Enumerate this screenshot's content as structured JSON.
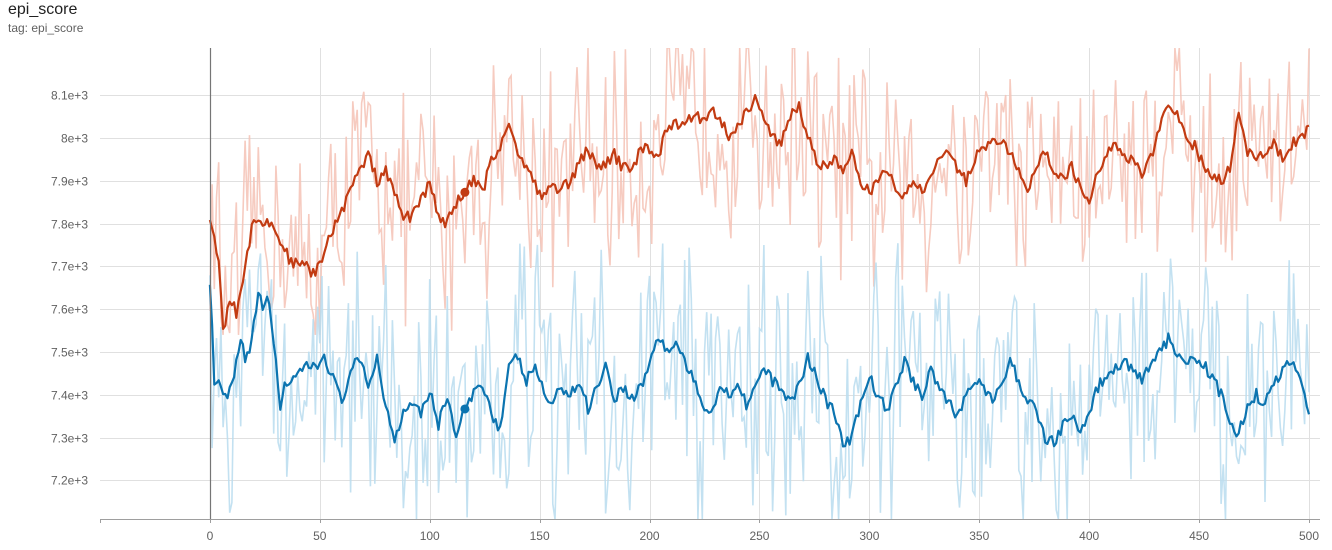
{
  "header": {
    "title": "epi_score",
    "tag": "tag: epi_score"
  },
  "colors": {
    "orange_raw": "#f4c2b5",
    "orange_smooth": "#c23b12",
    "blue_raw": "#b8dcee",
    "blue_smooth": "#0c74b0",
    "grid": "#e0e0e0"
  },
  "chart_data": {
    "type": "line",
    "title": "epi_score",
    "xlabel": "",
    "ylabel": "",
    "xlim": [
      -50,
      505
    ],
    "ylim": [
      7110,
      8210
    ],
    "xticks": [
      0,
      50,
      100,
      150,
      200,
      250,
      300,
      350,
      400,
      450,
      500
    ],
    "yticks": [
      7200,
      7300,
      7400,
      7500,
      7600,
      7700,
      7800,
      7900,
      8000,
      8100
    ],
    "ytick_labels": [
      "7.2e+3",
      "7.3e+3",
      "7.4e+3",
      "7.5e+3",
      "7.6e+3",
      "7.7e+3",
      "7.8e+3",
      "7.9e+3",
      "8e+3",
      "8.1e+3"
    ],
    "grid": true,
    "hover_markers": [
      {
        "series": "orange",
        "x": 116,
        "y": 7873
      },
      {
        "series": "blue",
        "x": 116,
        "y": 7367
      }
    ],
    "series": [
      {
        "color": "#c23b12",
        "raw_color": "#f4c2b5",
        "smoothed_keypoints": [
          [
            0,
            7822
          ],
          [
            2,
            7760
          ],
          [
            4,
            7720
          ],
          [
            6,
            7540
          ],
          [
            8,
            7600
          ],
          [
            10,
            7620
          ],
          [
            12,
            7590
          ],
          [
            16,
            7700
          ],
          [
            20,
            7820
          ],
          [
            24,
            7800
          ],
          [
            28,
            7800
          ],
          [
            32,
            7760
          ],
          [
            36,
            7720
          ],
          [
            40,
            7700
          ],
          [
            44,
            7700
          ],
          [
            48,
            7680
          ],
          [
            52,
            7730
          ],
          [
            56,
            7790
          ],
          [
            60,
            7830
          ],
          [
            64,
            7880
          ],
          [
            68,
            7920
          ],
          [
            72,
            7960
          ],
          [
            76,
            7900
          ],
          [
            80,
            7920
          ],
          [
            84,
            7870
          ],
          [
            88,
            7810
          ],
          [
            92,
            7820
          ],
          [
            96,
            7860
          ],
          [
            100,
            7890
          ],
          [
            104,
            7820
          ],
          [
            108,
            7800
          ],
          [
            112,
            7850
          ],
          [
            116,
            7873
          ],
          [
            120,
            7900
          ],
          [
            124,
            7870
          ],
          [
            128,
            7950
          ],
          [
            132,
            7980
          ],
          [
            136,
            8040
          ],
          [
            140,
            7960
          ],
          [
            144,
            7940
          ],
          [
            148,
            7890
          ],
          [
            152,
            7860
          ],
          [
            156,
            7890
          ],
          [
            160,
            7880
          ],
          [
            164,
            7900
          ],
          [
            168,
            7940
          ],
          [
            172,
            7980
          ],
          [
            176,
            7920
          ],
          [
            180,
            7940
          ],
          [
            184,
            7960
          ],
          [
            188,
            7930
          ],
          [
            192,
            7920
          ],
          [
            196,
            7980
          ],
          [
            200,
            7970
          ],
          [
            204,
            7960
          ],
          [
            208,
            8020
          ],
          [
            212,
            8040
          ],
          [
            216,
            8020
          ],
          [
            220,
            8060
          ],
          [
            224,
            8040
          ],
          [
            228,
            8070
          ],
          [
            232,
            8050
          ],
          [
            236,
            8000
          ],
          [
            240,
            8030
          ],
          [
            244,
            8060
          ],
          [
            248,
            8090
          ],
          [
            252,
            8040
          ],
          [
            256,
            8000
          ],
          [
            260,
            7990
          ],
          [
            264,
            8050
          ],
          [
            268,
            8070
          ],
          [
            272,
            8000
          ],
          [
            276,
            7950
          ],
          [
            280,
            7930
          ],
          [
            284,
            7950
          ],
          [
            288,
            7920
          ],
          [
            292,
            7960
          ],
          [
            296,
            7900
          ],
          [
            300,
            7870
          ],
          [
            304,
            7900
          ],
          [
            308,
            7930
          ],
          [
            312,
            7880
          ],
          [
            316,
            7860
          ],
          [
            320,
            7900
          ],
          [
            324,
            7880
          ],
          [
            328,
            7910
          ],
          [
            332,
            7950
          ],
          [
            336,
            7980
          ],
          [
            340,
            7930
          ],
          [
            344,
            7900
          ],
          [
            348,
            7950
          ],
          [
            352,
            7980
          ],
          [
            356,
            8000
          ],
          [
            360,
            7990
          ],
          [
            364,
            7960
          ],
          [
            368,
            7930
          ],
          [
            372,
            7880
          ],
          [
            376,
            7940
          ],
          [
            380,
            7960
          ],
          [
            384,
            7930
          ],
          [
            388,
            7900
          ],
          [
            392,
            7930
          ],
          [
            396,
            7880
          ],
          [
            400,
            7850
          ],
          [
            404,
            7930
          ],
          [
            408,
            7960
          ],
          [
            412,
            7990
          ],
          [
            416,
            7960
          ],
          [
            420,
            7950
          ],
          [
            424,
            7920
          ],
          [
            428,
            7950
          ],
          [
            432,
            8020
          ],
          [
            436,
            8080
          ],
          [
            440,
            8060
          ],
          [
            444,
            8000
          ],
          [
            448,
            7980
          ],
          [
            452,
            7940
          ],
          [
            456,
            7910
          ],
          [
            460,
            7900
          ],
          [
            464,
            7930
          ],
          [
            468,
            8060
          ],
          [
            472,
            7970
          ],
          [
            476,
            7950
          ],
          [
            480,
            7960
          ],
          [
            484,
            7990
          ],
          [
            488,
            7950
          ],
          [
            492,
            7980
          ],
          [
            496,
            8010
          ],
          [
            500,
            8015
          ]
        ],
        "raw_range": [
          7540,
          8210
        ]
      },
      {
        "color": "#0c74b0",
        "raw_color": "#b8dcee",
        "smoothed_keypoints": [
          [
            0,
            7670
          ],
          [
            2,
            7430
          ],
          [
            4,
            7420
          ],
          [
            6,
            7400
          ],
          [
            8,
            7390
          ],
          [
            10,
            7420
          ],
          [
            12,
            7470
          ],
          [
            14,
            7520
          ],
          [
            16,
            7490
          ],
          [
            18,
            7500
          ],
          [
            20,
            7560
          ],
          [
            22,
            7640
          ],
          [
            24,
            7600
          ],
          [
            26,
            7640
          ],
          [
            28,
            7560
          ],
          [
            30,
            7480
          ],
          [
            32,
            7370
          ],
          [
            34,
            7430
          ],
          [
            36,
            7420
          ],
          [
            40,
            7440
          ],
          [
            44,
            7470
          ],
          [
            48,
            7460
          ],
          [
            52,
            7490
          ],
          [
            56,
            7440
          ],
          [
            60,
            7380
          ],
          [
            64,
            7460
          ],
          [
            68,
            7480
          ],
          [
            72,
            7420
          ],
          [
            76,
            7490
          ],
          [
            80,
            7370
          ],
          [
            84,
            7300
          ],
          [
            88,
            7360
          ],
          [
            92,
            7390
          ],
          [
            96,
            7360
          ],
          [
            100,
            7410
          ],
          [
            104,
            7330
          ],
          [
            108,
            7400
          ],
          [
            112,
            7300
          ],
          [
            116,
            7367
          ],
          [
            120,
            7400
          ],
          [
            124,
            7430
          ],
          [
            128,
            7360
          ],
          [
            132,
            7320
          ],
          [
            136,
            7460
          ],
          [
            140,
            7490
          ],
          [
            144,
            7430
          ],
          [
            148,
            7470
          ],
          [
            152,
            7400
          ],
          [
            156,
            7380
          ],
          [
            160,
            7420
          ],
          [
            164,
            7400
          ],
          [
            168,
            7430
          ],
          [
            172,
            7370
          ],
          [
            176,
            7420
          ],
          [
            180,
            7470
          ],
          [
            184,
            7390
          ],
          [
            188,
            7420
          ],
          [
            192,
            7390
          ],
          [
            196,
            7420
          ],
          [
            200,
            7470
          ],
          [
            204,
            7540
          ],
          [
            208,
            7500
          ],
          [
            212,
            7520
          ],
          [
            216,
            7480
          ],
          [
            220,
            7430
          ],
          [
            224,
            7380
          ],
          [
            228,
            7360
          ],
          [
            232,
            7420
          ],
          [
            236,
            7400
          ],
          [
            240,
            7430
          ],
          [
            244,
            7380
          ],
          [
            248,
            7420
          ],
          [
            252,
            7460
          ],
          [
            256,
            7430
          ],
          [
            260,
            7420
          ],
          [
            264,
            7380
          ],
          [
            268,
            7420
          ],
          [
            272,
            7490
          ],
          [
            276,
            7440
          ],
          [
            280,
            7390
          ],
          [
            284,
            7360
          ],
          [
            288,
            7280
          ],
          [
            292,
            7300
          ],
          [
            296,
            7380
          ],
          [
            300,
            7440
          ],
          [
            304,
            7400
          ],
          [
            308,
            7360
          ],
          [
            312,
            7420
          ],
          [
            316,
            7480
          ],
          [
            320,
            7430
          ],
          [
            324,
            7400
          ],
          [
            328,
            7460
          ],
          [
            332,
            7420
          ],
          [
            336,
            7380
          ],
          [
            340,
            7350
          ],
          [
            344,
            7400
          ],
          [
            348,
            7440
          ],
          [
            352,
            7420
          ],
          [
            356,
            7380
          ],
          [
            360,
            7420
          ],
          [
            364,
            7480
          ],
          [
            368,
            7430
          ],
          [
            372,
            7390
          ],
          [
            376,
            7360
          ],
          [
            380,
            7300
          ],
          [
            384,
            7290
          ],
          [
            388,
            7330
          ],
          [
            392,
            7350
          ],
          [
            396,
            7310
          ],
          [
            400,
            7360
          ],
          [
            404,
            7420
          ],
          [
            408,
            7440
          ],
          [
            412,
            7460
          ],
          [
            416,
            7480
          ],
          [
            420,
            7450
          ],
          [
            424,
            7440
          ],
          [
            428,
            7460
          ],
          [
            432,
            7500
          ],
          [
            436,
            7530
          ],
          [
            440,
            7500
          ],
          [
            444,
            7460
          ],
          [
            448,
            7490
          ],
          [
            452,
            7470
          ],
          [
            456,
            7440
          ],
          [
            460,
            7400
          ],
          [
            464,
            7330
          ],
          [
            468,
            7310
          ],
          [
            472,
            7370
          ],
          [
            476,
            7400
          ],
          [
            480,
            7380
          ],
          [
            484,
            7420
          ],
          [
            488,
            7460
          ],
          [
            492,
            7480
          ],
          [
            496,
            7450
          ],
          [
            500,
            7350
          ]
        ],
        "raw_range": [
          7110,
          8210
        ]
      }
    ]
  }
}
